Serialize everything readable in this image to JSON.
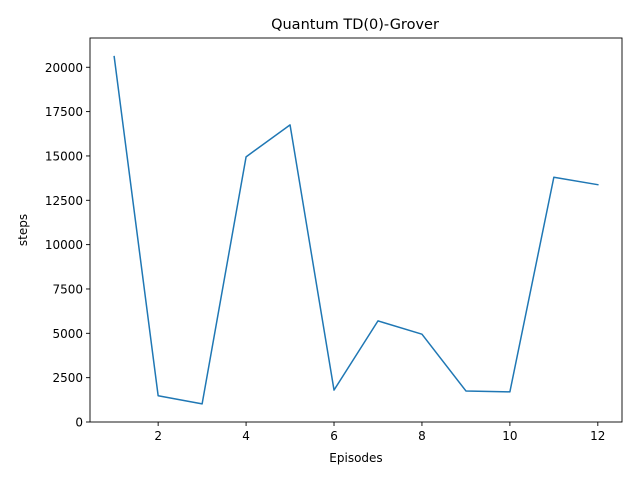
{
  "chart_data": {
    "type": "line",
    "title": "Quantum TD(0)-Grover",
    "xlabel": "Episodes",
    "ylabel": "steps",
    "xlim": [
      0.45,
      12.55
    ],
    "ylim": [
      0,
      21650
    ],
    "xticks": [
      2,
      4,
      6,
      8,
      10,
      12
    ],
    "yticks": [
      0,
      2500,
      5000,
      7500,
      10000,
      12500,
      15000,
      17500,
      20000
    ],
    "grid": false,
    "series": [
      {
        "color": "#1f77b4",
        "x": [
          1,
          2,
          3,
          4,
          5,
          6,
          7,
          8,
          9,
          10,
          11,
          12
        ],
        "y": [
          20600,
          1480,
          1020,
          14950,
          16750,
          1800,
          5700,
          4950,
          1750,
          1700,
          13800,
          13380
        ]
      }
    ]
  }
}
